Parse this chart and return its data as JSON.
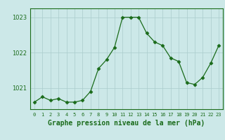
{
  "x": [
    0,
    1,
    2,
    3,
    4,
    5,
    6,
    7,
    8,
    9,
    10,
    11,
    12,
    13,
    14,
    15,
    16,
    17,
    18,
    19,
    20,
    21,
    22,
    23
  ],
  "y": [
    1020.6,
    1020.75,
    1020.65,
    1020.7,
    1020.6,
    1020.6,
    1020.65,
    1020.9,
    1021.55,
    1021.8,
    1022.15,
    1023.0,
    1023.0,
    1023.0,
    1022.55,
    1022.3,
    1022.2,
    1021.85,
    1021.75,
    1021.15,
    1021.1,
    1021.3,
    1021.7,
    1022.2
  ],
  "line_color": "#1a6b1a",
  "marker": "D",
  "marker_size": 2.5,
  "bg_color": "#cce8e8",
  "grid_color": "#aacccc",
  "xlabel": "Graphe pression niveau de la mer (hPa)",
  "xlabel_fontsize": 7,
  "xlabel_color": "#1a6b1a",
  "tick_color": "#1a6b1a",
  "ylim": [
    1020.4,
    1023.25
  ],
  "yticks": [
    1021,
    1022,
    1023
  ],
  "xtick_labels": [
    "0",
    "1",
    "2",
    "3",
    "4",
    "5",
    "6",
    "7",
    "8",
    "9",
    "10",
    "11",
    "12",
    "13",
    "14",
    "15",
    "16",
    "17",
    "18",
    "19",
    "20",
    "21",
    "22",
    "23"
  ]
}
